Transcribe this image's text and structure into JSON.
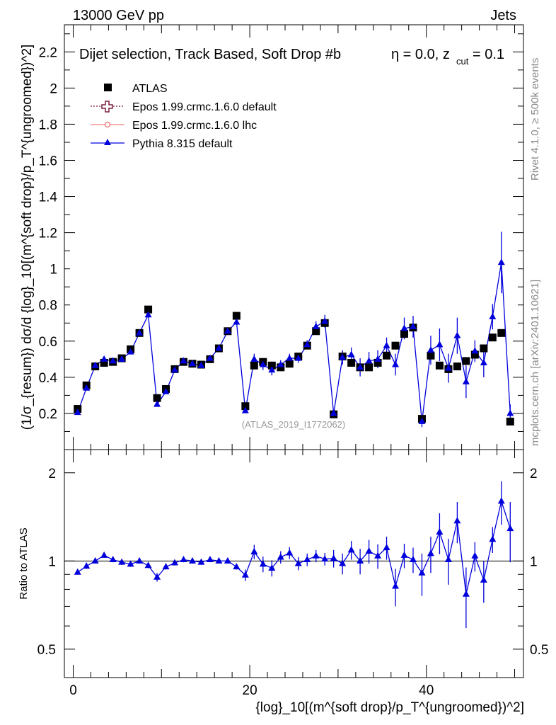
{
  "header": {
    "energy_label": "13000 GeV pp",
    "category_label": "Jets",
    "selection_label": "Dijet selection, Track Based, Soft Drop #b",
    "eta_label": "η = 0.0, z",
    "zcut_sub": "cut",
    "zcut_value": " = 0.1",
    "right_label_top": "Rivet 4.1.0, ≥ 500k events",
    "right_label_bottom": "mcplots.cern.ch [arXiv:2401.10621]",
    "analysis_id": "(ATLAS_2019_I1772062)"
  },
  "legend": {
    "atlas": "ATLAS",
    "epos_default": "Epos 1.99.crmc.1.6.0 default",
    "epos_lhc": "Epos 1.99.crmc.1.6.0 lhc",
    "pythia": "Pythia 8.315 default"
  },
  "axes": {
    "y_main_label": "(1/σ_{resum}) dσ/d {log}_10[(m^{soft drop}/p_T^{ungroomed})^2]",
    "y_ratio_label": "Ratio to ATLAS",
    "x_label": "{log}_10[(m^{soft drop}/p_T^{ungroomed})^2]",
    "main_ticks": [
      "0.2",
      "0.4",
      "0.6",
      "0.8",
      "1",
      "1.2",
      "1.4",
      "1.6",
      "1.8",
      "2",
      "2.2"
    ],
    "ratio_ticks": [
      "0.5",
      "1",
      "2"
    ],
    "x_ticks": [
      "0",
      "20",
      "40"
    ]
  },
  "colors": {
    "atlas": "#000000",
    "epos_default": "#7a1f3d",
    "epos_lhc": "#f08080",
    "pythia": "#0000dd"
  },
  "chart_data": {
    "type": "scatter",
    "x": [
      0.5,
      1.5,
      2.5,
      3.5,
      4.5,
      5.5,
      6.5,
      7.5,
      8.5,
      9.5,
      10.5,
      11.5,
      12.5,
      13.5,
      14.5,
      15.5,
      16.5,
      17.5,
      18.5,
      19.5,
      20.5,
      21.5,
      22.5,
      23.5,
      24.5,
      25.5,
      26.5,
      27.5,
      28.5,
      29.5,
      30.5,
      31.5,
      32.5,
      33.5,
      34.5,
      35.5,
      36.5,
      37.5,
      38.5,
      39.5,
      40.5,
      41.5,
      42.5,
      43.5,
      44.5,
      45.5,
      46.5,
      47.5,
      48.5,
      49.5
    ],
    "series": [
      {
        "name": "ATLAS",
        "values": [
          0.225,
          0.355,
          0.46,
          0.48,
          0.485,
          0.505,
          0.555,
          0.645,
          0.775,
          0.285,
          0.335,
          0.445,
          0.485,
          0.475,
          0.47,
          0.5,
          0.56,
          0.655,
          0.74,
          0.24,
          0.465,
          0.485,
          0.465,
          0.455,
          0.475,
          0.515,
          0.575,
          0.655,
          0.7,
          0.195,
          0.515,
          0.48,
          0.455,
          0.455,
          0.48,
          0.52,
          0.575,
          0.64,
          0.675,
          0.17,
          0.52,
          0.465,
          0.445,
          0.46,
          0.49,
          0.525,
          0.56,
          0.62,
          0.645,
          0.155
        ],
        "errors": [
          0,
          0,
          0,
          0,
          0,
          0,
          0,
          0,
          0,
          0,
          0,
          0,
          0,
          0,
          0,
          0,
          0,
          0,
          0,
          0,
          0,
          0,
          0,
          0,
          0,
          0,
          0,
          0,
          0,
          0,
          0,
          0,
          0,
          0,
          0,
          0,
          0,
          0,
          0,
          0,
          0,
          0,
          0,
          0,
          0,
          0,
          0,
          0,
          0,
          0
        ]
      },
      {
        "name": "Pythia 8.315 default",
        "values": [
          0.205,
          0.34,
          0.465,
          0.5,
          0.49,
          0.5,
          0.54,
          0.645,
          0.745,
          0.25,
          0.32,
          0.44,
          0.49,
          0.475,
          0.465,
          0.505,
          0.56,
          0.655,
          0.705,
          0.215,
          0.5,
          0.47,
          0.44,
          0.47,
          0.505,
          0.505,
          0.58,
          0.68,
          0.71,
          0.2,
          0.51,
          0.525,
          0.455,
          0.49,
          0.5,
          0.575,
          0.47,
          0.67,
          0.68,
          0.155,
          0.55,
          0.58,
          0.45,
          0.63,
          0.375,
          0.545,
          0.48,
          0.735,
          1.035,
          0.2
        ],
        "errors": [
          0.005,
          0.01,
          0.01,
          0.01,
          0.01,
          0.01,
          0.01,
          0.01,
          0.01,
          0.01,
          0.01,
          0.01,
          0.01,
          0.01,
          0.01,
          0.01,
          0.01,
          0.01,
          0.015,
          0.01,
          0.03,
          0.03,
          0.03,
          0.025,
          0.025,
          0.025,
          0.025,
          0.03,
          0.035,
          0.015,
          0.04,
          0.04,
          0.05,
          0.05,
          0.05,
          0.045,
          0.06,
          0.06,
          0.06,
          0.03,
          0.08,
          0.09,
          0.08,
          0.1,
          0.09,
          0.06,
          0.08,
          0.07,
          0.17,
          0.05
        ]
      }
    ],
    "ratio_values": [
      0.915,
      0.96,
      1.0,
      1.045,
      1.01,
      0.99,
      0.975,
      1.0,
      0.965,
      0.88,
      0.955,
      0.985,
      1.01,
      1.0,
      0.99,
      1.01,
      1.0,
      1.0,
      0.955,
      0.895,
      1.075,
      0.975,
      0.945,
      1.03,
      1.065,
      0.98,
      1.01,
      1.04,
      1.015,
      1.02,
      0.98,
      1.09,
      1.0,
      1.08,
      1.04,
      1.11,
      0.82,
      1.045,
      1.01,
      0.91,
      1.06,
      1.255,
      1.01,
      1.37,
      0.77,
      1.04,
      0.86,
      1.185,
      1.6,
      1.29
    ],
    "ratio_errors": [
      0.01,
      0.02,
      0.02,
      0.02,
      0.02,
      0.02,
      0.02,
      0.02,
      0.02,
      0.03,
      0.02,
      0.02,
      0.02,
      0.02,
      0.02,
      0.02,
      0.02,
      0.02,
      0.02,
      0.04,
      0.06,
      0.06,
      0.06,
      0.05,
      0.05,
      0.05,
      0.05,
      0.05,
      0.05,
      0.07,
      0.08,
      0.08,
      0.1,
      0.1,
      0.1,
      0.1,
      0.12,
      0.1,
      0.1,
      0.15,
      0.15,
      0.2,
      0.18,
      0.22,
      0.18,
      0.12,
      0.14,
      0.12,
      0.27,
      0.3
    ],
    "title": "Dijet selection, Track Based, Soft Drop #b η = 0.0, z_cut = 0.1",
    "xlabel": "{log}_10[(m^{soft drop}/p_T^{ungroomed})^2]",
    "ylabel": "(1/σ_{resum}) dσ/d {log}_10[(m^{soft drop}/p_T^{ungroomed})^2]",
    "xlim": [
      -1,
      51
    ],
    "ylim": [
      0,
      2.35
    ],
    "ratio_ylim": [
      0.4,
      2.4
    ],
    "ratio_scale": "log"
  }
}
